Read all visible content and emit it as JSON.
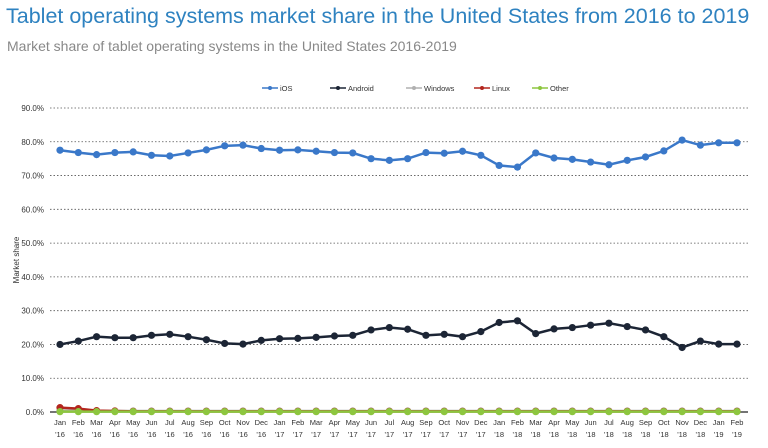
{
  "chart_data": {
    "type": "line",
    "title": "Tablet operating systems market share in the United States from 2016 to 2019",
    "subtitle": "Market share of tablet operating systems in the United States 2016-2019",
    "xlabel": "",
    "ylabel": "Market share",
    "ylim": [
      0,
      90
    ],
    "yticks": [
      "0.0%",
      "10.0%",
      "20.0%",
      "30.0%",
      "40.0%",
      "50.0%",
      "60.0%",
      "70.0%",
      "80.0%",
      "90.0%"
    ],
    "grid": true,
    "legend_position": "top",
    "categories": [
      [
        "Jan",
        "'16"
      ],
      [
        "Feb",
        "'16"
      ],
      [
        "Mar",
        "'16"
      ],
      [
        "Apr",
        "'16"
      ],
      [
        "May",
        "'16"
      ],
      [
        "Jun",
        "'16"
      ],
      [
        "Jul",
        "'16"
      ],
      [
        "Aug",
        "'16"
      ],
      [
        "Sep",
        "'16"
      ],
      [
        "Oct",
        "'16"
      ],
      [
        "Nov",
        "'16"
      ],
      [
        "Dec",
        "'16"
      ],
      [
        "Jan",
        "'17"
      ],
      [
        "Feb",
        "'17"
      ],
      [
        "Mar",
        "'17"
      ],
      [
        "Apr",
        "'17"
      ],
      [
        "May",
        "'17"
      ],
      [
        "Jun",
        "'17"
      ],
      [
        "Jul",
        "'17"
      ],
      [
        "Aug",
        "'17"
      ],
      [
        "Sep",
        "'17"
      ],
      [
        "Oct",
        "'17"
      ],
      [
        "Nov",
        "'17"
      ],
      [
        "Dec",
        "'17"
      ],
      [
        "Jan",
        "'18"
      ],
      [
        "Feb",
        "'18"
      ],
      [
        "Mar",
        "'18"
      ],
      [
        "Apr",
        "'18"
      ],
      [
        "May",
        "'18"
      ],
      [
        "Jun",
        "'18"
      ],
      [
        "Jul",
        "'18"
      ],
      [
        "Aug",
        "'18"
      ],
      [
        "Sep",
        "'18"
      ],
      [
        "Oct",
        "'18"
      ],
      [
        "Nov",
        "'18"
      ],
      [
        "Dec",
        "'18"
      ],
      [
        "Jan",
        "'19"
      ],
      [
        "Feb",
        "'19"
      ]
    ],
    "series": [
      {
        "name": "iOS",
        "color": "#3a78c9",
        "values": [
          77.5,
          76.8,
          76.2,
          76.8,
          77,
          76,
          75.8,
          76.7,
          77.6,
          78.8,
          79,
          78,
          77.5,
          77.6,
          77.2,
          76.8,
          76.7,
          75,
          74.5,
          75,
          76.8,
          76.6,
          77.2,
          76,
          73,
          72.5,
          76.7,
          75.2,
          74.8,
          74,
          73.2,
          74.5,
          75.5,
          77.3,
          80.5,
          79,
          79.7,
          79.7
        ]
      },
      {
        "name": "Android",
        "color": "#1c2535",
        "values": [
          20,
          21,
          22.3,
          22,
          22,
          22.7,
          23,
          22.3,
          21.4,
          20.3,
          20.1,
          21.2,
          21.7,
          21.8,
          22.1,
          22.5,
          22.7,
          24.3,
          25,
          24.5,
          22.7,
          23,
          22.3,
          23.8,
          26.5,
          27,
          23.2,
          24.6,
          25,
          25.7,
          26.3,
          25.3,
          24.3,
          22.3,
          19.1,
          21,
          20.1,
          20.1
        ]
      },
      {
        "name": "Windows",
        "color": "#b0b0b0",
        "values": [
          0.4,
          0.4,
          0.3,
          0.3,
          0.3,
          0.3,
          0.3,
          0.3,
          0.3,
          0.3,
          0.3,
          0.3,
          0.3,
          0.3,
          0.3,
          0.3,
          0.3,
          0.3,
          0.3,
          0.3,
          0.3,
          0.3,
          0.3,
          0.3,
          0.3,
          0.3,
          0.3,
          0.3,
          0.3,
          0.3,
          0.3,
          0.3,
          0.3,
          0.3,
          0.3,
          0.3,
          0.3,
          0.3
        ]
      },
      {
        "name": "Linux",
        "color": "#b3261e",
        "values": [
          1.3,
          1.0,
          0.4,
          0.3,
          0.2,
          0.2,
          0.2,
          0.2,
          0.2,
          0.2,
          0.2,
          0.2,
          0.2,
          0.2,
          0.2,
          0.2,
          0.2,
          0.2,
          0.2,
          0.2,
          0.2,
          0.2,
          0.2,
          0.2,
          0.2,
          0.2,
          0.2,
          0.2,
          0.2,
          0.2,
          0.2,
          0.2,
          0.2,
          0.2,
          0.2,
          0.2,
          0.2,
          0.2
        ]
      },
      {
        "name": "Other",
        "color": "#8dc63f",
        "values": [
          0.1,
          0.1,
          0.1,
          0.1,
          0.1,
          0.1,
          0.1,
          0.1,
          0.1,
          0.1,
          0.1,
          0.1,
          0.1,
          0.1,
          0.1,
          0.1,
          0.1,
          0.1,
          0.1,
          0.1,
          0.1,
          0.1,
          0.1,
          0.1,
          0.1,
          0.1,
          0.1,
          0.1,
          0.1,
          0.1,
          0.1,
          0.1,
          0.1,
          0.1,
          0.1,
          0.1,
          0.1,
          0.1
        ]
      }
    ]
  }
}
